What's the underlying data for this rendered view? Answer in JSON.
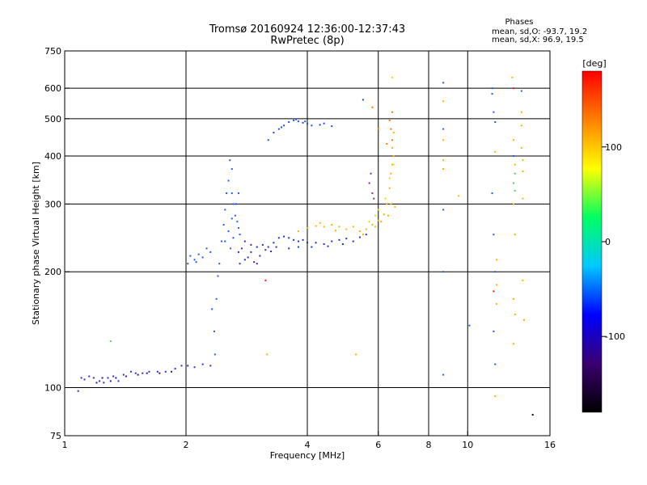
{
  "chart_data": {
    "type": "scatter",
    "title": "Tromsø 20160924 12:36:00-12:37:43",
    "subtitle": "RwPretec (8p)",
    "xlabel": "Frequency [MHz]",
    "ylabel": "Stationary phase Virtual Height [km]",
    "x_scale": "log",
    "y_scale": "log",
    "xlim": [
      1,
      16
    ],
    "ylim": [
      75,
      750
    ],
    "x_ticks": [
      1,
      2,
      4,
      6,
      8,
      10,
      16
    ],
    "y_ticks": [
      75,
      100,
      200,
      300,
      400,
      500,
      600,
      750
    ],
    "x_grid": [
      2,
      4,
      6,
      8,
      10
    ],
    "y_grid": [
      100,
      200,
      300,
      400,
      500,
      600
    ],
    "grid": true,
    "phase_stats": {
      "header": "Phases",
      "line_o": "mean, sd,O: -93.7, 19.2",
      "line_x": "mean, sd,X:  96.9, 19.5"
    },
    "colorbar": {
      "label": "[deg]",
      "range": [
        -180,
        180
      ],
      "ticks": [
        100,
        0,
        -100
      ],
      "colors": [
        "#000000",
        "#3a0070",
        "#0000ff",
        "#00c8ff",
        "#00ff60",
        "#ffff00",
        "#ff8000",
        "#ff0000"
      ]
    },
    "series": [
      {
        "color": "#2b2ed8",
        "points": [
          [
            1.08,
            98
          ],
          [
            1.1,
            106
          ],
          [
            1.12,
            105
          ],
          [
            1.15,
            107
          ],
          [
            1.18,
            106
          ],
          [
            1.22,
            104
          ],
          [
            1.25,
            103
          ],
          [
            1.28,
            106
          ],
          [
            1.32,
            107
          ],
          [
            1.36,
            104
          ],
          [
            1.4,
            108
          ],
          [
            1.46,
            110
          ],
          [
            1.5,
            109
          ],
          [
            1.56,
            109
          ],
          [
            1.62,
            110
          ],
          [
            1.7,
            110
          ],
          [
            1.78,
            110
          ],
          [
            1.88,
            112
          ],
          [
            1.95,
            114
          ],
          [
            2.02,
            114
          ],
          [
            2.1,
            113
          ],
          [
            2.2,
            115
          ],
          [
            2.3,
            114
          ]
        ]
      },
      {
        "color": "#3a10a0",
        "points": [
          [
            1.2,
            103
          ],
          [
            1.24,
            106
          ],
          [
            1.3,
            104
          ],
          [
            1.34,
            106
          ],
          [
            1.42,
            107
          ],
          [
            1.52,
            108
          ],
          [
            1.6,
            109
          ],
          [
            1.72,
            109
          ],
          [
            1.84,
            110
          ]
        ]
      },
      {
        "color": "#1e5cf0",
        "points": [
          [
            2.02,
            210
          ],
          [
            2.05,
            220
          ],
          [
            2.1,
            215
          ],
          [
            2.12,
            212
          ],
          [
            2.15,
            222
          ],
          [
            2.2,
            218
          ],
          [
            2.25,
            230
          ],
          [
            2.3,
            225
          ],
          [
            2.32,
            160
          ],
          [
            2.35,
            140
          ],
          [
            2.36,
            122
          ],
          [
            2.38,
            170
          ],
          [
            2.4,
            195
          ],
          [
            2.42,
            210
          ],
          [
            2.45,
            240
          ],
          [
            2.48,
            265
          ],
          [
            2.5,
            290
          ],
          [
            2.52,
            320
          ],
          [
            2.55,
            345
          ],
          [
            2.57,
            390
          ],
          [
            2.6,
            370
          ],
          [
            2.6,
            320
          ],
          [
            2.62,
            300
          ],
          [
            2.65,
            280
          ],
          [
            2.68,
            270
          ],
          [
            2.7,
            260
          ],
          [
            2.72,
            250
          ],
          [
            2.5,
            240
          ],
          [
            2.55,
            255
          ],
          [
            2.6,
            275
          ],
          [
            2.66,
            300
          ],
          [
            2.7,
            320
          ],
          [
            2.58,
            230
          ],
          [
            2.62,
            245
          ]
        ]
      },
      {
        "color": "#2030c8",
        "points": [
          [
            2.72,
            210
          ],
          [
            2.8,
            215
          ],
          [
            2.9,
            225
          ],
          [
            3.0,
            232
          ],
          [
            3.1,
            235
          ],
          [
            3.2,
            232
          ],
          [
            3.3,
            238
          ],
          [
            3.4,
            245
          ],
          [
            3.5,
            247
          ],
          [
            3.6,
            245
          ],
          [
            3.7,
            242
          ],
          [
            3.8,
            240
          ],
          [
            3.9,
            242
          ],
          [
            4.0,
            238
          ],
          [
            4.2,
            238
          ],
          [
            4.4,
            236
          ],
          [
            4.6,
            240
          ],
          [
            4.8,
            242
          ],
          [
            5.0,
            244
          ],
          [
            5.2,
            240
          ],
          [
            5.4,
            246
          ],
          [
            5.6,
            250
          ],
          [
            3.6,
            230
          ],
          [
            3.8,
            232
          ],
          [
            4.1,
            232
          ],
          [
            4.5,
            233
          ],
          [
            4.9,
            236
          ]
        ]
      },
      {
        "color": "#4820b0",
        "points": [
          [
            2.7,
            225
          ],
          [
            2.75,
            230
          ],
          [
            2.85,
            218
          ],
          [
            2.95,
            212
          ],
          [
            3.05,
            220
          ],
          [
            3.15,
            228
          ],
          [
            3.25,
            226
          ],
          [
            3.35,
            232
          ],
          [
            2.8,
            240
          ],
          [
            2.9,
            235
          ],
          [
            3.0,
            210
          ]
        ]
      },
      {
        "color": "#1e4ce0",
        "points": [
          [
            3.3,
            460
          ],
          [
            3.4,
            470
          ],
          [
            3.5,
            480
          ],
          [
            3.6,
            490
          ],
          [
            3.7,
            495
          ],
          [
            3.8,
            492
          ],
          [
            3.9,
            488
          ],
          [
            4.0,
            485
          ],
          [
            4.1,
            480
          ],
          [
            4.3,
            482
          ],
          [
            4.6,
            478
          ],
          [
            3.2,
            440
          ],
          [
            3.45,
            475
          ],
          [
            3.75,
            498
          ],
          [
            3.95,
            492
          ],
          [
            4.4,
            486
          ],
          [
            5.5,
            560
          ]
        ]
      },
      {
        "color": "#ffb000",
        "points": [
          [
            3.8,
            255
          ],
          [
            4.0,
            260
          ],
          [
            4.2,
            263
          ],
          [
            4.4,
            262
          ],
          [
            4.6,
            265
          ],
          [
            4.8,
            262
          ],
          [
            5.0,
            258
          ],
          [
            5.2,
            262
          ],
          [
            5.4,
            255
          ],
          [
            5.6,
            258
          ],
          [
            5.8,
            265
          ],
          [
            6.0,
            272
          ],
          [
            6.2,
            282
          ],
          [
            6.3,
            300
          ],
          [
            6.4,
            330
          ],
          [
            6.45,
            360
          ],
          [
            6.5,
            380
          ],
          [
            6.55,
            400
          ],
          [
            6.5,
            420
          ],
          [
            6.55,
            460
          ],
          [
            6.45,
            300
          ],
          [
            6.35,
            280
          ],
          [
            6.1,
            270
          ],
          [
            5.9,
            262
          ],
          [
            5.5,
            250
          ],
          [
            4.3,
            268
          ],
          [
            4.7,
            256
          ]
        ]
      },
      {
        "color": "#ff7800",
        "points": [
          [
            6.5,
            440
          ],
          [
            6.5,
            520
          ],
          [
            6.45,
            470
          ],
          [
            6.4,
            495
          ],
          [
            5.8,
            535
          ],
          [
            6.0,
            470
          ],
          [
            6.3,
            430
          ]
        ]
      },
      {
        "color": "#e0e000",
        "points": [
          [
            6.5,
            640
          ],
          [
            6.55,
            380
          ],
          [
            6.4,
            350
          ],
          [
            6.25,
            310
          ],
          [
            6.0,
            290
          ],
          [
            5.9,
            280
          ],
          [
            5.7,
            270
          ]
        ]
      },
      {
        "color": "#7030a0",
        "points": [
          [
            5.7,
            340
          ],
          [
            5.8,
            320
          ],
          [
            5.85,
            310
          ],
          [
            5.75,
            360
          ]
        ]
      },
      {
        "color": "#1e5cf0",
        "points": [
          [
            8.7,
            620
          ],
          [
            8.7,
            470
          ],
          [
            8.7,
            290
          ],
          [
            8.7,
            200
          ],
          [
            8.7,
            108
          ],
          [
            11.5,
            600
          ],
          [
            11.5,
            580
          ],
          [
            11.6,
            520
          ],
          [
            11.7,
            490
          ],
          [
            11.5,
            320
          ],
          [
            11.6,
            250
          ],
          [
            11.7,
            200
          ],
          [
            11.6,
            140
          ],
          [
            11.7,
            115
          ],
          [
            13.0,
            400
          ],
          [
            13.6,
            590
          ],
          [
            10.1,
            145
          ]
        ]
      },
      {
        "color": "#ffb000",
        "points": [
          [
            8.7,
            555
          ],
          [
            8.7,
            440
          ],
          [
            8.7,
            390
          ],
          [
            8.7,
            370
          ],
          [
            9.5,
            315
          ],
          [
            11.7,
            410
          ],
          [
            11.8,
            215
          ],
          [
            11.8,
            185
          ],
          [
            11.8,
            165
          ],
          [
            11.7,
            95
          ],
          [
            12.9,
            640
          ],
          [
            13.0,
            440
          ],
          [
            13.1,
            380
          ],
          [
            13.0,
            300
          ],
          [
            13.1,
            250
          ],
          [
            13.0,
            170
          ],
          [
            13.1,
            155
          ],
          [
            13.0,
            130
          ],
          [
            13.6,
            480
          ],
          [
            13.6,
            420
          ],
          [
            13.7,
            390
          ],
          [
            13.7,
            365
          ],
          [
            13.7,
            310
          ],
          [
            13.7,
            190
          ],
          [
            13.8,
            150
          ],
          [
            13.6,
            520
          ],
          [
            3.18,
            122
          ],
          [
            5.28,
            122
          ],
          [
            6.6,
            295
          ]
        ]
      },
      {
        "color": "#ff2000",
        "points": [
          [
            11.6,
            178
          ],
          [
            3.15,
            190
          ],
          [
            13.0,
            600
          ]
        ]
      },
      {
        "color": "#50d050",
        "points": [
          [
            1.3,
            132
          ],
          [
            13.1,
            360
          ],
          [
            13.1,
            325
          ],
          [
            13.0,
            340
          ]
        ]
      },
      {
        "color": "#000000",
        "points": [
          [
            14.5,
            85
          ]
        ]
      }
    ]
  }
}
